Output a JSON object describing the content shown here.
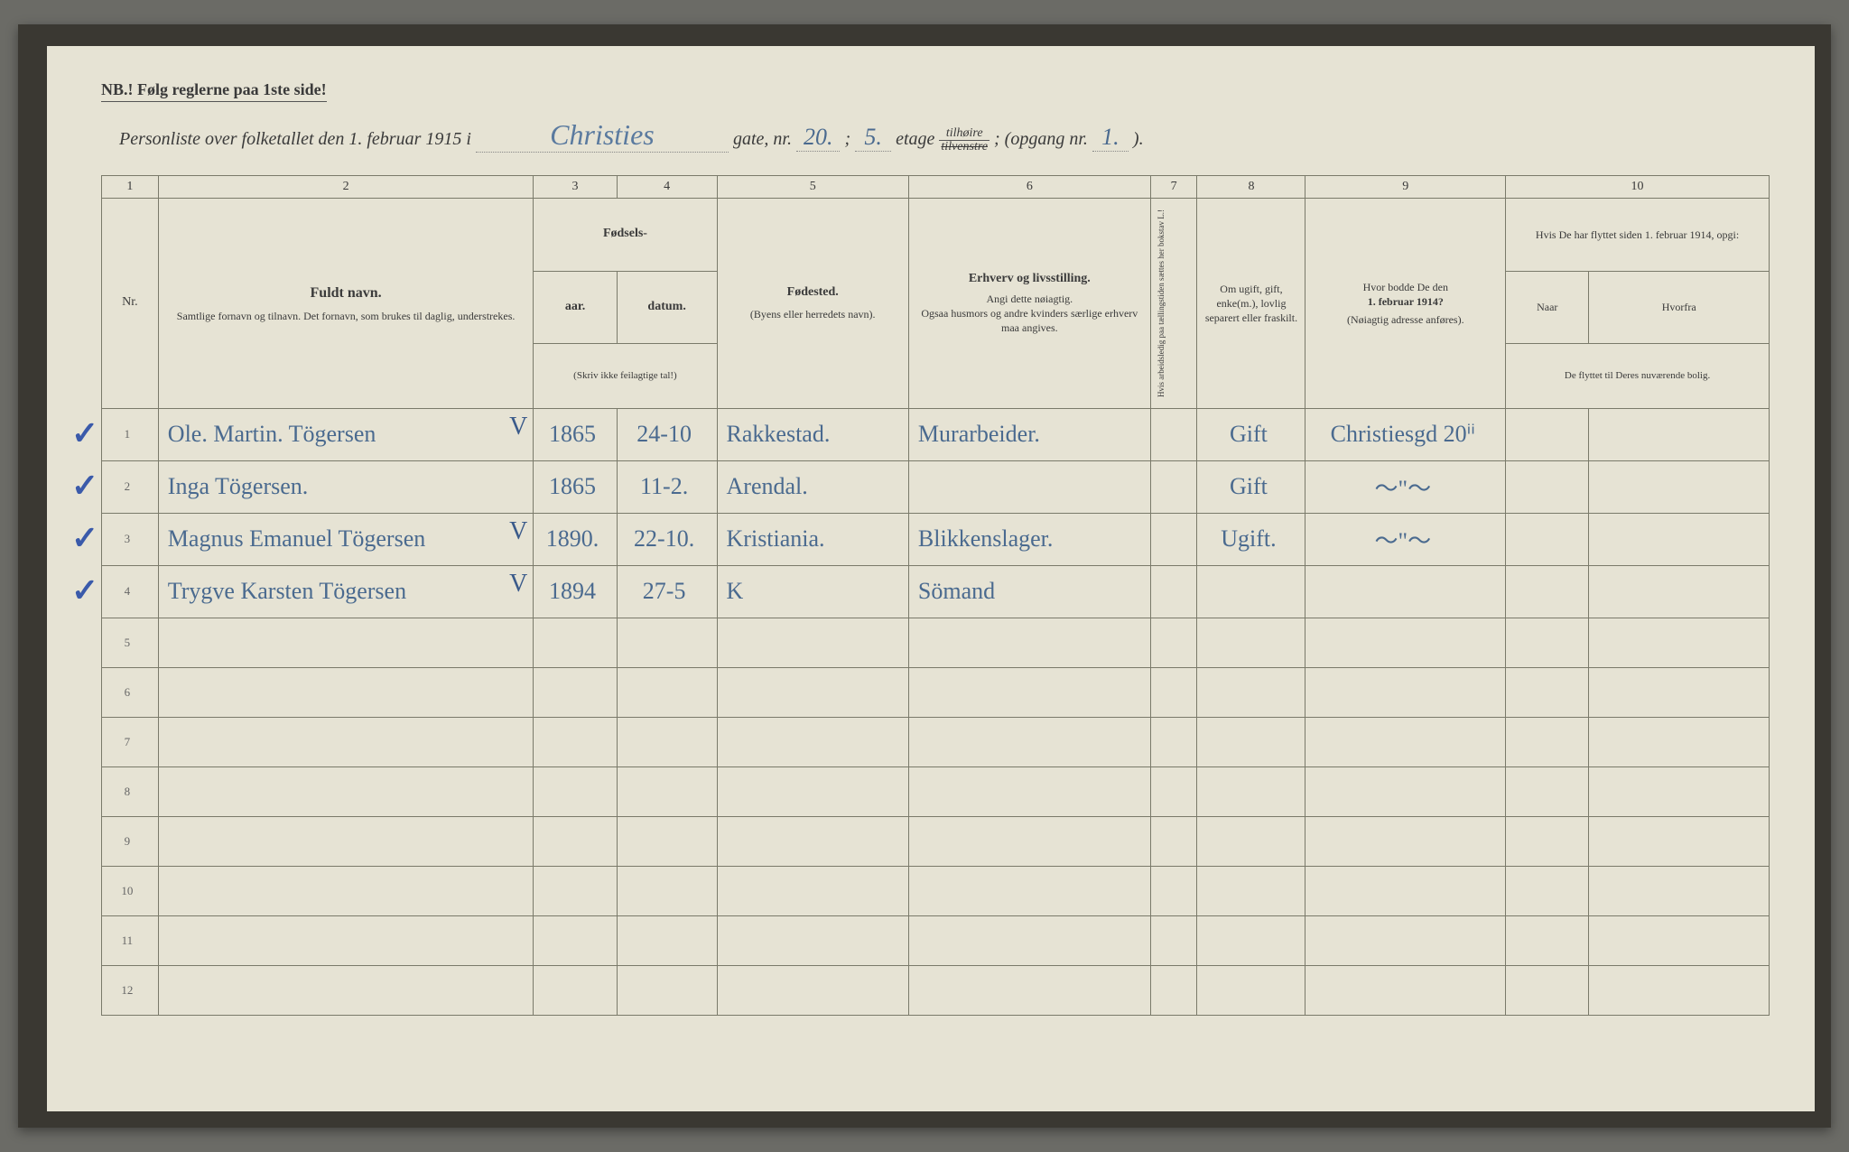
{
  "nb": "NB.! Følg reglerne paa 1ste side!",
  "title": {
    "prefix": "Personliste over folketallet den 1. februar 1915 i",
    "street": "Christies",
    "gate": "gate, nr.",
    "gate_nr": "20.",
    "semicolon": ";",
    "etage_nr": "5.",
    "etage": "etage",
    "frac_top": "tilhøire",
    "frac_bot": "tilvenstre",
    "semicolon2": ";",
    "opgang": "(opgang nr.",
    "opgang_nr": "1.",
    "close": ")."
  },
  "colnums": [
    "1",
    "2",
    "3",
    "4",
    "5",
    "6",
    "7",
    "8",
    "9",
    "10"
  ],
  "headers": {
    "nr": "Nr.",
    "name_title": "Fuldt navn.",
    "name_sub": "Samtlige fornavn og tilnavn.   Det fornavn, som brukes til daglig, understrekes.",
    "fodsels": "Fødsels-",
    "aar": "aar.",
    "datum": "datum.",
    "skriv": "(Skriv ikke feilagtige tal!)",
    "fodested": "Fødested.",
    "fodested_sub": "(Byens eller herredets navn).",
    "erhverv": "Erhverv og livsstilling.",
    "erhverv_sub": "Angi dette nøiagtig.\nOgsaa husmors og andre kvinders særlige erhverv maa angives.",
    "col7": "Hvis arbeidsledig paa tællingstiden sættes her bokstav L.!",
    "col8": "Om ugift, gift, enke(m.), lovlig separert eller fraskilt.",
    "col9": "Hvor bodde De den 1. februar 1914?",
    "col9_sub": "(Nøiagtig adresse anføres).",
    "col10": "Hvis De har flyttet siden 1. februar 1914, opgi:",
    "col10a": "Naar",
    "col10b": "Hvorfra",
    "col10_sub": "De flyttet til Deres nuværende bolig."
  },
  "rows": [
    {
      "nr": "1",
      "check": "✓",
      "name": "Ole. Martin. Tögersen",
      "v": "V",
      "aar": "1865",
      "datum": "24-10",
      "sted": "Rakkestad.",
      "erhverv": "Murarbeider.",
      "c7": "",
      "c8": "Gift",
      "c9": "Christiesgd 20ⁱⁱ",
      "c10a": "",
      "c10b": ""
    },
    {
      "nr": "2",
      "check": "✓",
      "name": "Inga  Tögersen.",
      "v": "",
      "aar": "1865",
      "datum": "11-2.",
      "sted": "Arendal.",
      "erhverv": "",
      "c7": "",
      "c8": "Gift",
      "c9": "〜\"〜",
      "c10a": "",
      "c10b": ""
    },
    {
      "nr": "3",
      "check": "✓",
      "name": "Magnus Emanuel Tögersen",
      "v": "V",
      "aar": "1890.",
      "datum": "22-10.",
      "sted": "Kristiania.",
      "erhverv": "Blikkenslager.",
      "c7": "",
      "c8": "Ugift.",
      "c9": "〜\"〜",
      "c10a": "",
      "c10b": ""
    },
    {
      "nr": "4",
      "check": "✓",
      "name": "Trygve Karsten Tögersen",
      "v": "V",
      "aar": "1894",
      "datum": "27-5",
      "sted": "K",
      "erhverv": "Sömand",
      "c7": "",
      "c8": "",
      "c9": "",
      "c10a": "",
      "c10b": ""
    }
  ],
  "empty_rows": [
    "5",
    "6",
    "7",
    "8",
    "9",
    "10",
    "11",
    "12"
  ]
}
